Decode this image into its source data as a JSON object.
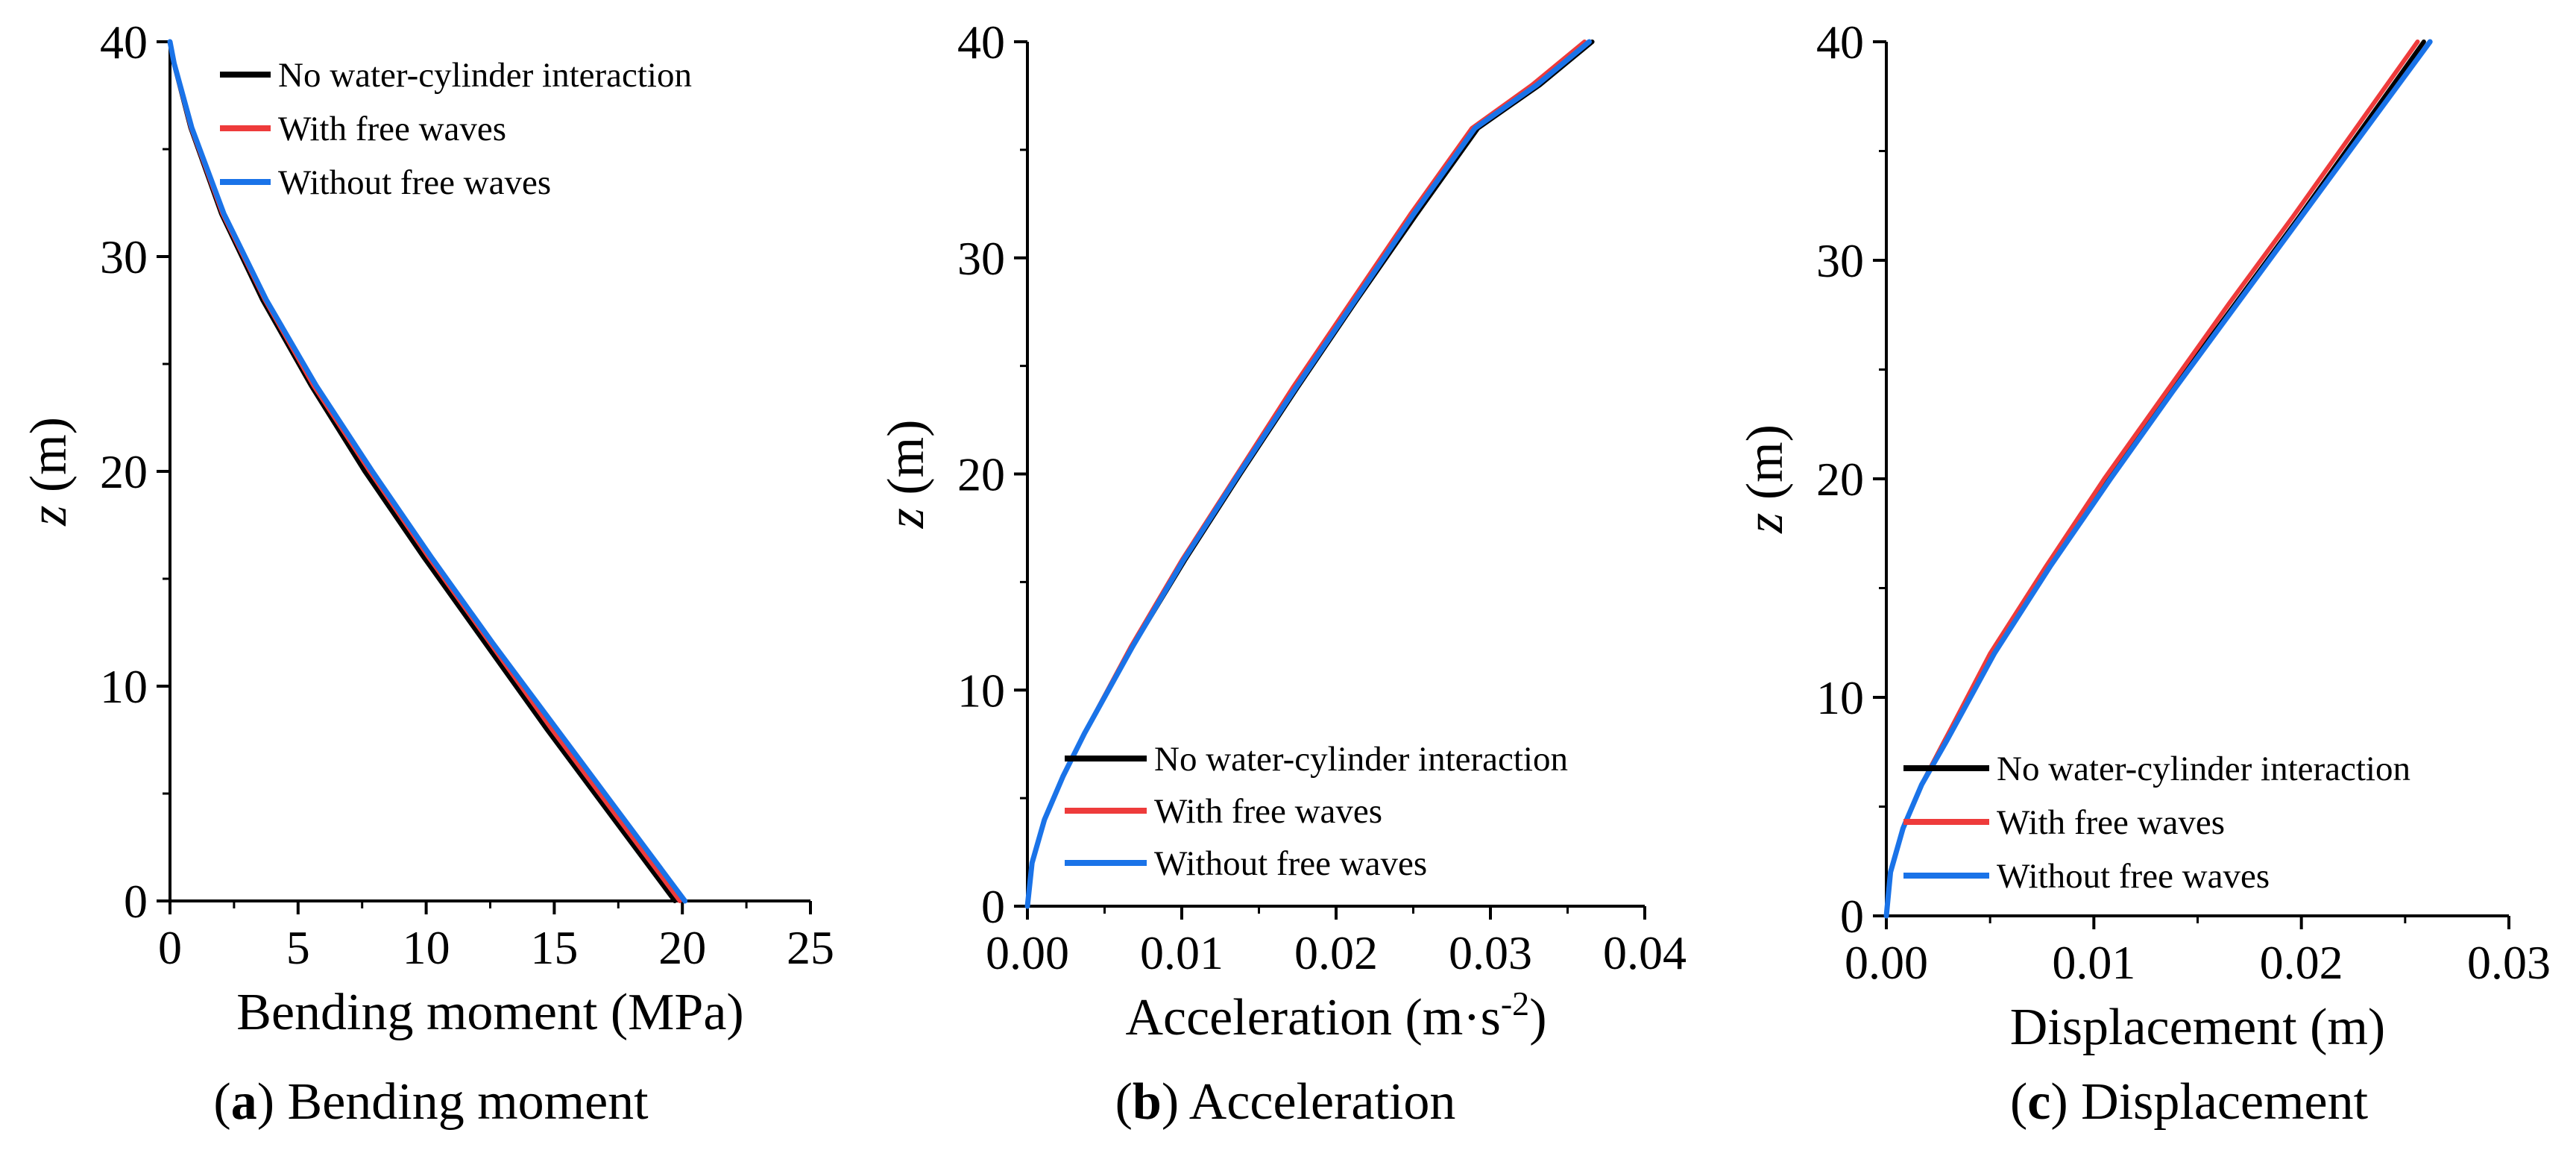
{
  "colors": {
    "no_interaction": "#000000",
    "with_free_waves": "#ee3b3b",
    "without_free_waves": "#1a73e8"
  },
  "chart_data": [
    {
      "type": "line",
      "caption_letter": "a",
      "caption_text": " Bending moment",
      "xlabel": "Bending moment (MPa)",
      "ylabel_var": "z",
      "ylabel_unit": " (m)",
      "xlim": [
        0,
        25
      ],
      "ylim": [
        0,
        40
      ],
      "xticks": [
        0,
        5,
        10,
        15,
        20,
        25
      ],
      "xtick_labels": [
        "0",
        "5",
        "10",
        "15",
        "20",
        "25"
      ],
      "yticks": [
        0,
        10,
        20,
        30,
        40
      ],
      "ytick_labels": [
        "0",
        "10",
        "20",
        "30",
        "40"
      ],
      "legend_position": "top-right",
      "legend": [
        "No water-cylinder interaction",
        "With free waves",
        "Without free waves"
      ],
      "series": [
        {
          "name": "No water-cylinder interaction",
          "color_key": "no_interaction",
          "x": [
            19.7,
            17.2,
            14.7,
            12.3,
            9.9,
            7.6,
            5.5,
            3.6,
            2.0,
            0.8,
            0.15,
            0.0
          ],
          "z": [
            0,
            4,
            8,
            12,
            16,
            20,
            24,
            28,
            32,
            36,
            39,
            40
          ]
        },
        {
          "name": "With free waves",
          "color_key": "with_free_waves",
          "x": [
            19.9,
            17.4,
            14.9,
            12.5,
            10.1,
            7.8,
            5.6,
            3.7,
            2.05,
            0.82,
            0.15,
            0.0
          ],
          "z": [
            0,
            4,
            8,
            12,
            16,
            20,
            24,
            28,
            32,
            36,
            39,
            40
          ]
        },
        {
          "name": "Without free waves",
          "color_key": "without_free_waves",
          "x": [
            20.1,
            17.6,
            15.1,
            12.6,
            10.2,
            7.9,
            5.7,
            3.75,
            2.1,
            0.85,
            0.16,
            0.0
          ],
          "z": [
            0,
            4,
            8,
            12,
            16,
            20,
            24,
            28,
            32,
            36,
            39,
            40
          ]
        }
      ]
    },
    {
      "type": "line",
      "caption_letter": "b",
      "caption_text": " Acceleration",
      "xlabel": "Acceleration (m·s",
      "xlabel_sup": "-2",
      "xlabel_end": ")",
      "ylabel_var": "z",
      "ylabel_unit": " (m)",
      "xlim": [
        0,
        0.04
      ],
      "ylim": [
        0,
        40
      ],
      "xticks": [
        0,
        0.01,
        0.02,
        0.03,
        0.04
      ],
      "xtick_labels": [
        "0.00",
        "0.01",
        "0.02",
        "0.03",
        "0.04"
      ],
      "yticks": [
        0,
        10,
        20,
        30,
        40
      ],
      "ytick_labels": [
        "0",
        "10",
        "20",
        "30",
        "40"
      ],
      "legend_position": "bottom-right",
      "legend": [
        "No water-cylinder interaction",
        "With free waves",
        "Without free waves"
      ],
      "series": [
        {
          "name": "No water-cylinder interaction",
          "color_key": "no_interaction",
          "x": [
            0.0,
            0.0003,
            0.0011,
            0.0023,
            0.0037,
            0.0068,
            0.0102,
            0.0138,
            0.0175,
            0.0213,
            0.0252,
            0.0292,
            0.0332,
            0.0366
          ],
          "z": [
            0,
            2,
            4,
            6,
            8,
            12,
            16,
            20,
            24,
            28,
            32,
            36,
            38,
            40
          ]
        },
        {
          "name": "With free waves",
          "color_key": "with_free_waves",
          "x": [
            0.0,
            0.0003,
            0.0011,
            0.0023,
            0.0037,
            0.0067,
            0.01,
            0.0136,
            0.0172,
            0.021,
            0.0248,
            0.0288,
            0.0327,
            0.0361
          ],
          "z": [
            0,
            2,
            4,
            6,
            8,
            12,
            16,
            20,
            24,
            28,
            32,
            36,
            38,
            40
          ]
        },
        {
          "name": "Without free waves",
          "color_key": "without_free_waves",
          "x": [
            0.0,
            0.0003,
            0.0011,
            0.0023,
            0.0037,
            0.0068,
            0.0101,
            0.0137,
            0.0174,
            0.0212,
            0.025,
            0.029,
            0.033,
            0.0364
          ],
          "z": [
            0,
            2,
            4,
            6,
            8,
            12,
            16,
            20,
            24,
            28,
            32,
            36,
            38,
            40
          ]
        }
      ]
    },
    {
      "type": "line",
      "caption_letter": "c",
      "caption_text": " Displacement",
      "xlabel": "Displacement (m)",
      "ylabel_var": "z",
      "ylabel_unit": " (m)",
      "xlim": [
        0,
        0.03
      ],
      "ylim": [
        0,
        40
      ],
      "xticks": [
        0,
        0.01,
        0.02,
        0.03
      ],
      "xtick_labels": [
        "0.00",
        "0.01",
        "0.02",
        "0.03"
      ],
      "yticks": [
        0,
        10,
        20,
        30,
        40
      ],
      "ytick_labels": [
        "0",
        "10",
        "20",
        "30",
        "40"
      ],
      "legend_position": "bottom-right",
      "legend": [
        "No water-cylinder interaction",
        "With free waves",
        "Without free waves"
      ],
      "series": [
        {
          "name": "No water-cylinder interaction",
          "color_key": "no_interaction",
          "x": [
            0.0,
            0.0002,
            0.0008,
            0.0017,
            0.0028,
            0.0051,
            0.0078,
            0.0107,
            0.0137,
            0.0168,
            0.0199,
            0.0229,
            0.0259
          ],
          "z": [
            0,
            2,
            4,
            6,
            8,
            12,
            16,
            20,
            24,
            28,
            32,
            36,
            40
          ]
        },
        {
          "name": "With free waves",
          "color_key": "with_free_waves",
          "x": [
            0.0,
            0.0002,
            0.0008,
            0.0017,
            0.0028,
            0.005,
            0.0077,
            0.0105,
            0.0135,
            0.0165,
            0.0196,
            0.0226,
            0.0256
          ],
          "z": [
            0,
            2,
            4,
            6,
            8,
            12,
            16,
            20,
            24,
            28,
            32,
            36,
            40
          ]
        },
        {
          "name": "Without free waves",
          "color_key": "without_free_waves",
          "x": [
            0.0,
            0.0002,
            0.0008,
            0.0017,
            0.0029,
            0.0052,
            0.0079,
            0.0108,
            0.0138,
            0.0169,
            0.02,
            0.0231,
            0.0262
          ],
          "z": [
            0,
            2,
            4,
            6,
            8,
            12,
            16,
            20,
            24,
            28,
            32,
            36,
            40
          ]
        }
      ]
    }
  ]
}
